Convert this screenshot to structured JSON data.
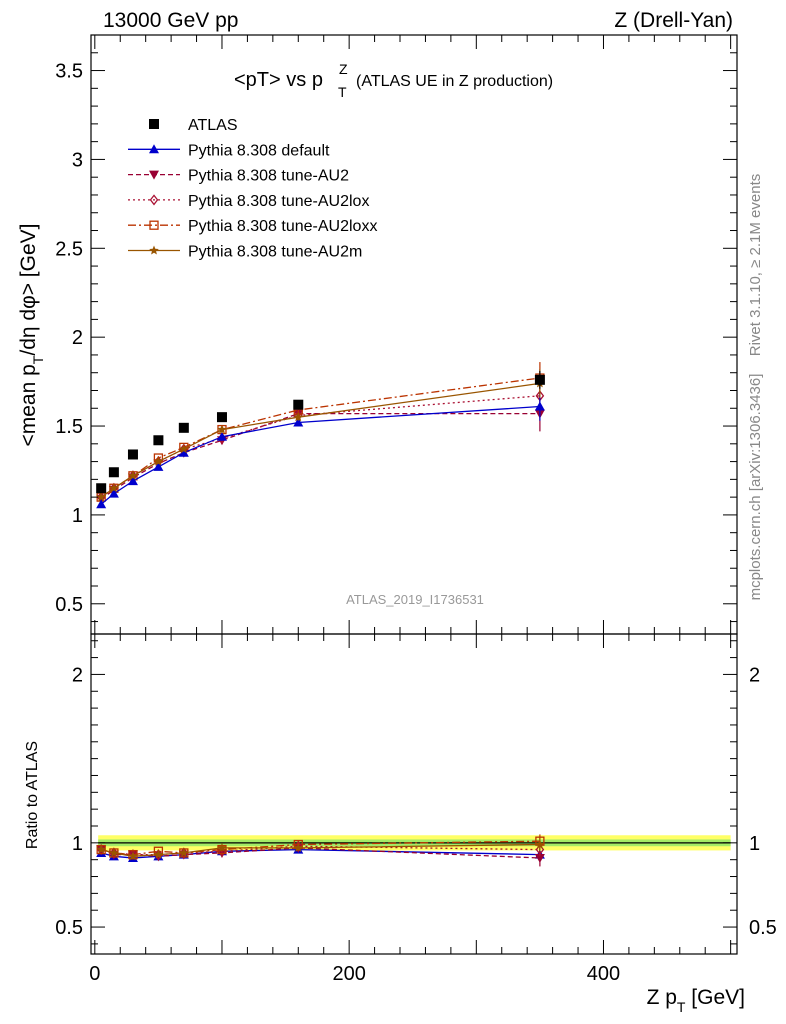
{
  "header": {
    "left": "13000 GeV pp",
    "right": "Z (Drell-Yan)"
  },
  "title": {
    "main": "<pT> vs p",
    "sup": "Z",
    "sub": "T",
    "suffix": "(ATLAS UE in Z production)"
  },
  "side_labels": {
    "rivet": "Rivet 3.1.10, ≥ 2.1M events",
    "mcplots": "mcplots.cern.ch [arXiv:1306.3436]"
  },
  "analysis_id": "ATLAS_2019_I1736531",
  "axis_titles": {
    "upper_y": {
      "p1": "<mean p",
      "p1sub": "T",
      "p2": "/dη dφ> [GeV]"
    },
    "lower_y": "Ratio to ATLAS",
    "x": {
      "p1": "Z p",
      "p1sub": "T",
      "p2": " [GeV]"
    }
  },
  "colors": {
    "data": "#000000",
    "default": "#0000cc",
    "au2": "#990033",
    "au2lox": "#aa1133",
    "au2loxx": "#bb3300",
    "au2m": "#995500",
    "band_inner": "#66dd66",
    "band_outer": "#ffff66"
  },
  "chart_data": [
    {
      "type": "scatter",
      "panel": "main",
      "title": "<pT> vs pTZ (ATLAS UE in Z production)",
      "xlabel": "Z pT [GeV]",
      "ylabel": "<mean pT/dη dφ> [GeV]",
      "xlim": [
        -3,
        505
      ],
      "ylim": [
        0.33,
        3.7
      ],
      "yticks": [
        0.5,
        1,
        1.5,
        2,
        2.5,
        3,
        3.5
      ],
      "ytick_labels": [
        "0.5",
        "1",
        "1.5",
        "2",
        "2.5",
        "3",
        "3.5"
      ],
      "legend_position": "top-left",
      "x": [
        5,
        15,
        30,
        50,
        70,
        100,
        160,
        350
      ],
      "series": [
        {
          "key": "data",
          "name": "ATLAS",
          "marker": "square",
          "line": "none",
          "values": [
            1.15,
            1.24,
            1.34,
            1.42,
            1.49,
            1.55,
            1.62,
            1.76
          ],
          "errors": [
            0.01,
            0.01,
            0.01,
            0.01,
            0.01,
            0.01,
            0.015,
            0.05
          ]
        },
        {
          "key": "default",
          "name": "Pythia 8.308 default",
          "marker": "triangle-up",
          "line": "solid",
          "values": [
            1.06,
            1.12,
            1.19,
            1.27,
            1.35,
            1.44,
            1.52,
            1.61
          ],
          "errors": [
            0.01,
            0.01,
            0.01,
            0.01,
            0.01,
            0.015,
            0.02,
            0.08
          ]
        },
        {
          "key": "au2",
          "name": "Pythia 8.308 tune-AU2",
          "marker": "triangle-down",
          "line": "dashed",
          "values": [
            1.09,
            1.14,
            1.21,
            1.29,
            1.35,
            1.42,
            1.57,
            1.57
          ],
          "errors": [
            0.01,
            0.01,
            0.01,
            0.01,
            0.01,
            0.02,
            0.02,
            0.1
          ]
        },
        {
          "key": "au2lox",
          "name": "Pythia 8.308 tune-AU2lox",
          "marker": "diamond-open",
          "line": "dotted",
          "values": [
            1.1,
            1.15,
            1.22,
            1.3,
            1.37,
            1.43,
            1.56,
            1.67
          ],
          "errors": [
            0.01,
            0.01,
            0.01,
            0.01,
            0.01,
            0.02,
            0.02,
            0.08
          ]
        },
        {
          "key": "au2loxx",
          "name": "Pythia 8.308 tune-AU2loxx",
          "marker": "square-open",
          "line": "dashdot",
          "values": [
            1.1,
            1.15,
            1.22,
            1.32,
            1.38,
            1.48,
            1.59,
            1.77
          ],
          "errors": [
            0.01,
            0.01,
            0.01,
            0.01,
            0.01,
            0.02,
            0.02,
            0.09
          ]
        },
        {
          "key": "au2m",
          "name": "Pythia 8.308 tune-AU2m",
          "marker": "star",
          "line": "solid",
          "values": [
            1.1,
            1.15,
            1.22,
            1.3,
            1.37,
            1.48,
            1.55,
            1.74
          ],
          "errors": [
            0.01,
            0.01,
            0.01,
            0.01,
            0.01,
            0.02,
            0.02,
            0.08
          ]
        }
      ]
    },
    {
      "type": "scatter",
      "panel": "ratio",
      "xlabel": "Z pT [GeV]",
      "ylabel": "Ratio to ATLAS",
      "xlim": [
        -3,
        505
      ],
      "ylim": [
        0.34,
        2.24
      ],
      "yticks": [
        0.5,
        1,
        2
      ],
      "ytick_labels": [
        "0.5",
        "1",
        "2"
      ],
      "xticks": [
        0,
        200,
        400
      ],
      "xtick_labels": [
        "0",
        "200",
        "400"
      ],
      "reference_line": 1,
      "band_inner": [
        0.98,
        1.02
      ],
      "band_outer": [
        0.955,
        1.045
      ],
      "x": [
        5,
        15,
        30,
        50,
        70,
        100,
        160,
        350
      ],
      "series": [
        {
          "key": "default",
          "name": "Pythia 8.308 default",
          "marker": "triangle-up",
          "line": "solid",
          "values": [
            0.94,
            0.92,
            0.91,
            0.92,
            0.93,
            0.95,
            0.96,
            0.93
          ],
          "errors": [
            0.01,
            0.01,
            0.01,
            0.01,
            0.01,
            0.01,
            0.012,
            0.04
          ]
        },
        {
          "key": "au2",
          "name": "Pythia 8.308 tune-AU2",
          "marker": "triangle-down",
          "line": "dashed",
          "values": [
            0.96,
            0.93,
            0.93,
            0.92,
            0.93,
            0.94,
            0.97,
            0.91
          ],
          "errors": [
            0.01,
            0.01,
            0.01,
            0.01,
            0.01,
            0.012,
            0.012,
            0.05
          ]
        },
        {
          "key": "au2lox",
          "name": "Pythia 8.308 tune-AU2lox",
          "marker": "diamond-open",
          "line": "dotted",
          "values": [
            0.96,
            0.94,
            0.93,
            0.93,
            0.94,
            0.95,
            0.98,
            0.96
          ],
          "errors": [
            0.01,
            0.01,
            0.01,
            0.01,
            0.01,
            0.012,
            0.012,
            0.04
          ]
        },
        {
          "key": "au2loxx",
          "name": "Pythia 8.308 tune-AU2loxx",
          "marker": "square-open",
          "line": "dashdot",
          "values": [
            0.96,
            0.94,
            0.93,
            0.95,
            0.94,
            0.96,
            0.99,
            1.01
          ],
          "errors": [
            0.01,
            0.01,
            0.01,
            0.01,
            0.01,
            0.012,
            0.012,
            0.04
          ]
        },
        {
          "key": "au2m",
          "name": "Pythia 8.308 tune-AU2m",
          "marker": "star",
          "line": "solid",
          "values": [
            0.96,
            0.94,
            0.92,
            0.93,
            0.94,
            0.97,
            0.97,
            0.99
          ],
          "errors": [
            0.01,
            0.01,
            0.01,
            0.01,
            0.01,
            0.012,
            0.012,
            0.04
          ]
        }
      ]
    }
  ]
}
